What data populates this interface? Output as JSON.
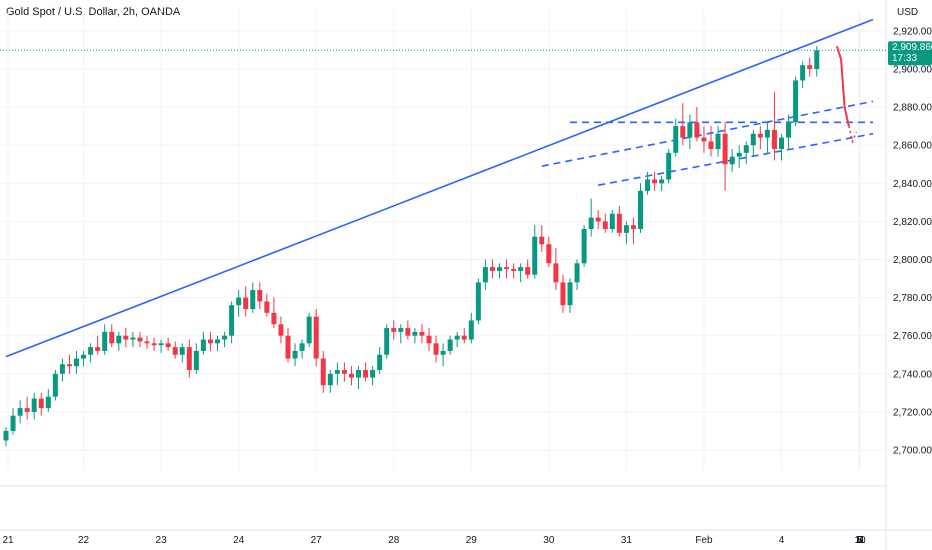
{
  "header": {
    "title": "Gold Spot / U.S. Dollar, 2h, OANDA"
  },
  "price_axis": {
    "currency": "USD"
  },
  "last_price": {
    "value": "2,909.860",
    "countdown": "17:33"
  },
  "colors": {
    "up": "#089981",
    "down": "#f23645",
    "trendline": "#2962ff",
    "projection": "#f23645",
    "last_price_line": "#089981",
    "last_price_bg": "#089981"
  },
  "chart_data": {
    "type": "candlestick",
    "title": "Gold Spot / U.S. Dollar, 2h, OANDA",
    "ylim": [
      2690,
      2935
    ],
    "y_ticks": [
      "2,700.000",
      "2,720.000",
      "2,740.000",
      "2,760.000",
      "2,780.000",
      "2,800.000",
      "2,820.000",
      "2,840.000",
      "2,860.000",
      "2,880.000",
      "2,900.000",
      "2,920.000"
    ],
    "y_tick_values": [
      2700,
      2720,
      2740,
      2760,
      2780,
      2800,
      2820,
      2840,
      2860,
      2880,
      2900,
      2920
    ],
    "x_ticks": [
      "21",
      "22",
      "23",
      "24",
      "27",
      "28",
      "29",
      "30",
      "31",
      "Feb",
      "4",
      "5",
      "6",
      "7",
      "10",
      "11"
    ],
    "x_tick_index": [
      0,
      11,
      22,
      33,
      44,
      55,
      66,
      77,
      88,
      99,
      110,
      121,
      132,
      143,
      154,
      165
    ],
    "candles": [
      [
        2705,
        2712,
        2702,
        2710
      ],
      [
        2710,
        2722,
        2708,
        2718
      ],
      [
        2718,
        2726,
        2714,
        2722
      ],
      [
        2722,
        2728,
        2716,
        2720
      ],
      [
        2720,
        2730,
        2716,
        2727
      ],
      [
        2727,
        2730,
        2718,
        2722
      ],
      [
        2722,
        2732,
        2720,
        2728
      ],
      [
        2728,
        2742,
        2726,
        2740
      ],
      [
        2740,
        2748,
        2736,
        2745
      ],
      [
        2745,
        2750,
        2740,
        2744
      ],
      [
        2744,
        2752,
        2740,
        2748
      ],
      [
        2748,
        2752,
        2744,
        2750
      ],
      [
        2750,
        2756,
        2746,
        2754
      ],
      [
        2754,
        2760,
        2750,
        2752
      ],
      [
        2752,
        2766,
        2750,
        2762
      ],
      [
        2762,
        2766,
        2754,
        2756
      ],
      [
        2756,
        2762,
        2752,
        2760
      ],
      [
        2760,
        2764,
        2754,
        2758
      ],
      [
        2758,
        2762,
        2754,
        2759
      ],
      [
        2759,
        2762,
        2754,
        2757
      ],
      [
        2757,
        2760,
        2753,
        2756
      ],
      [
        2756,
        2759,
        2752,
        2755
      ],
      [
        2755,
        2758,
        2751,
        2756
      ],
      [
        2756,
        2759,
        2752,
        2754
      ],
      [
        2754,
        2757,
        2748,
        2750
      ],
      [
        2750,
        2756,
        2746,
        2754
      ],
      [
        2754,
        2758,
        2738,
        2742
      ],
      [
        2742,
        2756,
        2740,
        2752
      ],
      [
        2752,
        2762,
        2750,
        2758
      ],
      [
        2758,
        2762,
        2752,
        2756
      ],
      [
        2756,
        2760,
        2752,
        2758
      ],
      [
        2758,
        2762,
        2754,
        2760
      ],
      [
        2760,
        2778,
        2756,
        2776
      ],
      [
        2776,
        2784,
        2770,
        2780
      ],
      [
        2780,
        2786,
        2770,
        2774
      ],
      [
        2774,
        2788,
        2772,
        2784
      ],
      [
        2784,
        2788,
        2774,
        2778
      ],
      [
        2778,
        2782,
        2770,
        2772
      ],
      [
        2772,
        2780,
        2764,
        2766
      ],
      [
        2766,
        2770,
        2756,
        2760
      ],
      [
        2760,
        2764,
        2746,
        2748
      ],
      [
        2748,
        2756,
        2744,
        2752
      ],
      [
        2752,
        2758,
        2748,
        2756
      ],
      [
        2756,
        2772,
        2754,
        2770
      ],
      [
        2770,
        2774,
        2744,
        2748
      ],
      [
        2748,
        2752,
        2730,
        2734
      ],
      [
        2734,
        2742,
        2730,
        2740
      ],
      [
        2740,
        2746,
        2734,
        2742
      ],
      [
        2742,
        2746,
        2736,
        2740
      ],
      [
        2740,
        2744,
        2734,
        2738
      ],
      [
        2738,
        2744,
        2732,
        2742
      ],
      [
        2742,
        2746,
        2736,
        2738
      ],
      [
        2738,
        2744,
        2734,
        2742
      ],
      [
        2742,
        2754,
        2740,
        2750
      ],
      [
        2750,
        2766,
        2748,
        2764
      ],
      [
        2764,
        2768,
        2758,
        2762
      ],
      [
        2762,
        2766,
        2756,
        2764
      ],
      [
        2764,
        2768,
        2758,
        2760
      ],
      [
        2760,
        2764,
        2756,
        2762
      ],
      [
        2762,
        2766,
        2756,
        2760
      ],
      [
        2760,
        2764,
        2752,
        2756
      ],
      [
        2756,
        2760,
        2746,
        2750
      ],
      [
        2750,
        2756,
        2744,
        2752
      ],
      [
        2752,
        2760,
        2750,
        2758
      ],
      [
        2758,
        2762,
        2754,
        2760
      ],
      [
        2760,
        2764,
        2756,
        2758
      ],
      [
        2758,
        2772,
        2756,
        2768
      ],
      [
        2768,
        2790,
        2766,
        2788
      ],
      [
        2788,
        2800,
        2784,
        2796
      ],
      [
        2796,
        2800,
        2790,
        2794
      ],
      [
        2794,
        2798,
        2790,
        2796
      ],
      [
        2796,
        2800,
        2790,
        2795
      ],
      [
        2795,
        2798,
        2790,
        2794
      ],
      [
        2794,
        2798,
        2788,
        2796
      ],
      [
        2796,
        2800,
        2790,
        2792
      ],
      [
        2792,
        2818,
        2790,
        2812
      ],
      [
        2812,
        2818,
        2804,
        2808
      ],
      [
        2808,
        2812,
        2796,
        2798
      ],
      [
        2798,
        2806,
        2784,
        2788
      ],
      [
        2788,
        2792,
        2772,
        2776
      ],
      [
        2776,
        2790,
        2772,
        2788
      ],
      [
        2788,
        2800,
        2784,
        2798
      ],
      [
        2798,
        2818,
        2796,
        2816
      ],
      [
        2816,
        2832,
        2812,
        2822
      ],
      [
        2822,
        2826,
        2816,
        2820
      ],
      [
        2820,
        2824,
        2814,
        2816
      ],
      [
        2816,
        2826,
        2814,
        2824
      ],
      [
        2824,
        2828,
        2812,
        2814
      ],
      [
        2814,
        2820,
        2808,
        2818
      ],
      [
        2818,
        2822,
        2808,
        2816
      ],
      [
        2816,
        2840,
        2814,
        2836
      ],
      [
        2836,
        2846,
        2834,
        2842
      ],
      [
        2842,
        2846,
        2836,
        2840
      ],
      [
        2840,
        2844,
        2836,
        2842
      ],
      [
        2842,
        2858,
        2840,
        2856
      ],
      [
        2856,
        2874,
        2854,
        2870
      ],
      [
        2870,
        2882,
        2860,
        2864
      ],
      [
        2864,
        2876,
        2858,
        2872
      ],
      [
        2872,
        2880,
        2862,
        2864
      ],
      [
        2864,
        2870,
        2856,
        2862
      ],
      [
        2862,
        2870,
        2854,
        2858
      ],
      [
        2858,
        2870,
        2854,
        2866
      ],
      [
        2866,
        2872,
        2836,
        2850
      ],
      [
        2850,
        2858,
        2846,
        2854
      ],
      [
        2854,
        2860,
        2848,
        2856
      ],
      [
        2856,
        2862,
        2850,
        2860
      ],
      [
        2860,
        2868,
        2854,
        2866
      ],
      [
        2866,
        2870,
        2858,
        2864
      ],
      [
        2864,
        2872,
        2856,
        2868
      ],
      [
        2868,
        2888,
        2852,
        2858
      ],
      [
        2858,
        2866,
        2852,
        2864
      ],
      [
        2864,
        2876,
        2858,
        2872
      ],
      [
        2872,
        2896,
        2870,
        2894
      ],
      [
        2894,
        2904,
        2890,
        2902
      ],
      [
        2902,
        2906,
        2896,
        2900
      ],
      [
        2900,
        2912,
        2896,
        2909.86
      ]
    ],
    "trendlines": [
      {
        "kind": "solid",
        "from": [
          0,
          2749
        ],
        "to": [
          121,
          2926
        ]
      },
      {
        "kind": "dashed",
        "from": [
          76,
          2849
        ],
        "to": [
          121,
          2883
        ]
      },
      {
        "kind": "dashed",
        "from": [
          84,
          2839
        ],
        "to": [
          121,
          2866
        ]
      },
      {
        "kind": "dashed",
        "from": [
          80,
          2872
        ],
        "to": [
          121,
          2872
        ]
      }
    ],
    "projection": [
      [
        117,
        2912
      ],
      [
        117.6,
        2905
      ],
      [
        118.1,
        2880
      ],
      [
        118.7,
        2870
      ],
      [
        119.2,
        2862
      ],
      [
        119.8,
        2867
      ]
    ],
    "grid": true
  }
}
